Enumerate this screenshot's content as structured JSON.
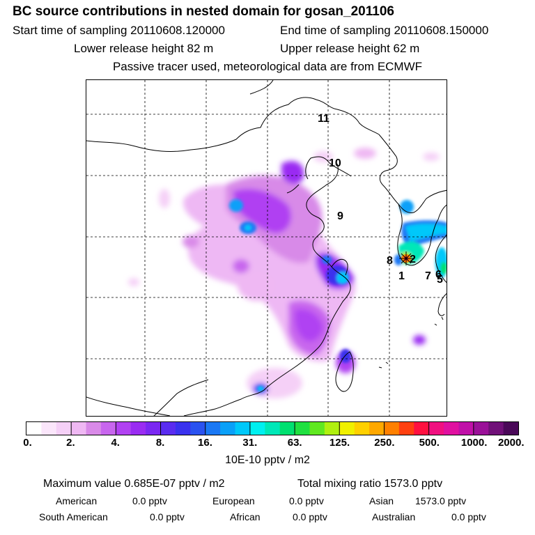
{
  "header": {
    "title": "BC  source contributions in nested domain for gosan_201106",
    "start_label": "Start time of sampling 20110608.120000",
    "end_label": "End time of sampling 20110608.150000",
    "lower_label": "Lower release height   82 m",
    "upper_label": "Upper release height   62 m",
    "note": "Passive tracer used, meteorological data are from ECMWF"
  },
  "map": {
    "markers": [
      "11",
      "10",
      "9",
      "8",
      "2",
      "1",
      "7",
      "6",
      "5"
    ]
  },
  "colorbar": {
    "ticks": [
      "0.",
      "2.",
      "4.",
      "8.",
      "16.",
      "31.",
      "63.",
      "125.",
      "250.",
      "500.",
      "1000.",
      "2000."
    ],
    "colors": [
      "#ffffff",
      "#fbe6fb",
      "#f5d0f7",
      "#efb8f3",
      "#d98ae8",
      "#c866ee",
      "#b142f2",
      "#9a2cf2",
      "#7a28f2",
      "#5a2cf0",
      "#3a32ee",
      "#2a52f0",
      "#1a78f4",
      "#0aa0f8",
      "#00c8fa",
      "#00f0f0",
      "#00e8b8",
      "#00e070",
      "#20e040",
      "#60e820",
      "#b0f010",
      "#f0f000",
      "#ffd000",
      "#ffa800",
      "#ff8000",
      "#ff4010",
      "#ff1040",
      "#f01080",
      "#e010a0",
      "#c010a8",
      "#9a1098",
      "#701078",
      "#4a0858"
    ],
    "unit": "10E-10 pptv / m2"
  },
  "summary": {
    "max_label": "Maximum value  0.685E-07 pptv / m2",
    "total_label": "Total mixing ratio      1573.0 pptv",
    "regions": [
      {
        "name": "American",
        "value": "0.0 pptv"
      },
      {
        "name": "European",
        "value": "0.0 pptv"
      },
      {
        "name": "Asian",
        "value": "1573.0 pptv"
      },
      {
        "name": "South American",
        "value": "0.0 pptv"
      },
      {
        "name": "African",
        "value": "0.0 pptv"
      },
      {
        "name": "Australian",
        "value": "0.0 pptv"
      }
    ]
  }
}
